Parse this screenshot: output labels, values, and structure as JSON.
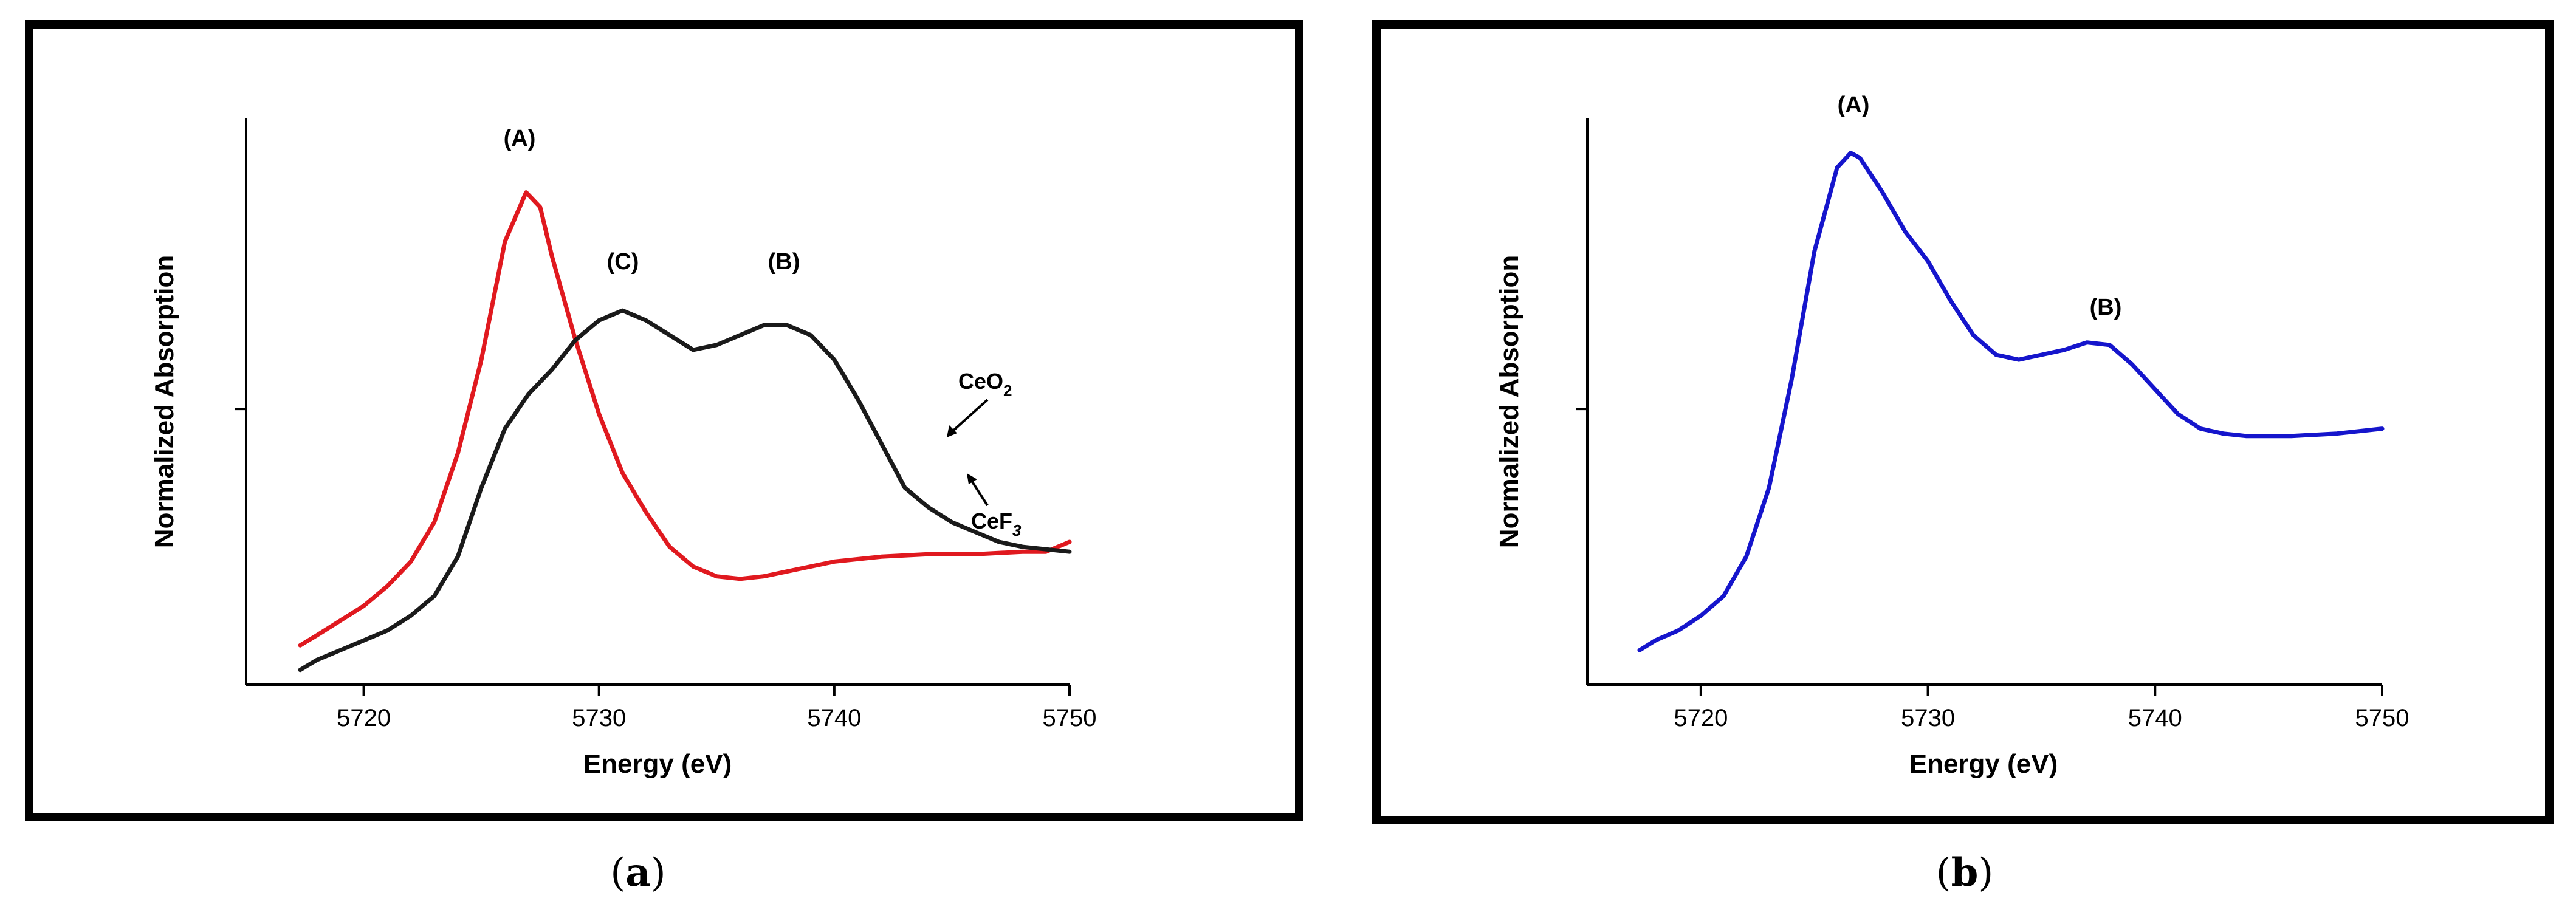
{
  "chart_data": [
    {
      "type": "line",
      "caption_letter": "a",
      "xlabel": "Energy (eV)",
      "ylabel": "Normalized Absorption",
      "xlim": [
        5715,
        5750
      ],
      "ylim": [
        0,
        1.15
      ],
      "x_ticks": [
        5720,
        5730,
        5740,
        5750
      ],
      "y_ticks": [
        0.56
      ],
      "series": [
        {
          "name": "CeF3",
          "color": "#e0191f",
          "points": [
            [
              5717.3,
              0.08
            ],
            [
              5718,
              0.1
            ],
            [
              5719,
              0.13
            ],
            [
              5720,
              0.16
            ],
            [
              5721,
              0.2
            ],
            [
              5722,
              0.25
            ],
            [
              5723,
              0.33
            ],
            [
              5724,
              0.47
            ],
            [
              5725,
              0.66
            ],
            [
              5726,
              0.9
            ],
            [
              5726.9,
              1.0
            ],
            [
              5727.5,
              0.97
            ],
            [
              5728,
              0.87
            ],
            [
              5729,
              0.7
            ],
            [
              5730,
              0.55
            ],
            [
              5731,
              0.43
            ],
            [
              5732,
              0.35
            ],
            [
              5733,
              0.28
            ],
            [
              5734,
              0.24
            ],
            [
              5735,
              0.22
            ],
            [
              5736,
              0.215
            ],
            [
              5737,
              0.22
            ],
            [
              5738,
              0.23
            ],
            [
              5740,
              0.25
            ],
            [
              5742,
              0.26
            ],
            [
              5744,
              0.265
            ],
            [
              5746,
              0.265
            ],
            [
              5748,
              0.27
            ],
            [
              5749,
              0.27
            ],
            [
              5750,
              0.29
            ]
          ]
        },
        {
          "name": "CeO2",
          "color": "#1a1a1a",
          "points": [
            [
              5717.3,
              0.03
            ],
            [
              5718,
              0.05
            ],
            [
              5719,
              0.07
            ],
            [
              5720,
              0.09
            ],
            [
              5721,
              0.11
            ],
            [
              5722,
              0.14
            ],
            [
              5723,
              0.18
            ],
            [
              5724,
              0.26
            ],
            [
              5725,
              0.4
            ],
            [
              5726,
              0.52
            ],
            [
              5727,
              0.59
            ],
            [
              5728,
              0.64
            ],
            [
              5729,
              0.7
            ],
            [
              5730,
              0.74
            ],
            [
              5731,
              0.76
            ],
            [
              5732,
              0.74
            ],
            [
              5733,
              0.71
            ],
            [
              5734,
              0.68
            ],
            [
              5735,
              0.69
            ],
            [
              5736,
              0.71
            ],
            [
              5737,
              0.73
            ],
            [
              5738,
              0.73
            ],
            [
              5739,
              0.71
            ],
            [
              5740,
              0.66
            ],
            [
              5741,
              0.58
            ],
            [
              5742,
              0.49
            ],
            [
              5743,
              0.4
            ],
            [
              5744,
              0.36
            ],
            [
              5745,
              0.33
            ],
            [
              5746,
              0.31
            ],
            [
              5747,
              0.29
            ],
            [
              5748,
              0.28
            ],
            [
              5750,
              0.27
            ]
          ]
        }
      ],
      "annotations": [
        "(A)",
        "(B)",
        "(C)"
      ],
      "series_labels": [
        {
          "base": "CeO",
          "sub": "2"
        },
        {
          "base": "CeF",
          "sub": "3"
        }
      ]
    },
    {
      "type": "line",
      "caption_letter": "b",
      "xlabel": "Energy (eV)",
      "ylabel": "Normalized Absorption",
      "xlim": [
        5715,
        5750
      ],
      "ylim": [
        0,
        1.15
      ],
      "x_ticks": [
        5720,
        5730,
        5740,
        5750
      ],
      "y_ticks": [
        0.56
      ],
      "series": [
        {
          "color": "#1515cc",
          "points": [
            [
              5717.3,
              0.07
            ],
            [
              5718,
              0.09
            ],
            [
              5719,
              0.11
            ],
            [
              5720,
              0.14
            ],
            [
              5721,
              0.18
            ],
            [
              5722,
              0.26
            ],
            [
              5723,
              0.4
            ],
            [
              5724,
              0.62
            ],
            [
              5725,
              0.88
            ],
            [
              5726,
              1.05
            ],
            [
              5726.6,
              1.08
            ],
            [
              5727,
              1.07
            ],
            [
              5728,
              1.0
            ],
            [
              5729,
              0.92
            ],
            [
              5730,
              0.86
            ],
            [
              5731,
              0.78
            ],
            [
              5732,
              0.71
            ],
            [
              5733,
              0.67
            ],
            [
              5734,
              0.66
            ],
            [
              5735,
              0.67
            ],
            [
              5736,
              0.68
            ],
            [
              5737,
              0.695
            ],
            [
              5738,
              0.69
            ],
            [
              5739,
              0.65
            ],
            [
              5740,
              0.6
            ],
            [
              5741,
              0.55
            ],
            [
              5742,
              0.52
            ],
            [
              5743,
              0.51
            ],
            [
              5744,
              0.505
            ],
            [
              5746,
              0.505
            ],
            [
              5748,
              0.51
            ],
            [
              5750,
              0.52
            ]
          ]
        }
      ],
      "annotations": [
        "(A)",
        "(B)"
      ]
    }
  ]
}
